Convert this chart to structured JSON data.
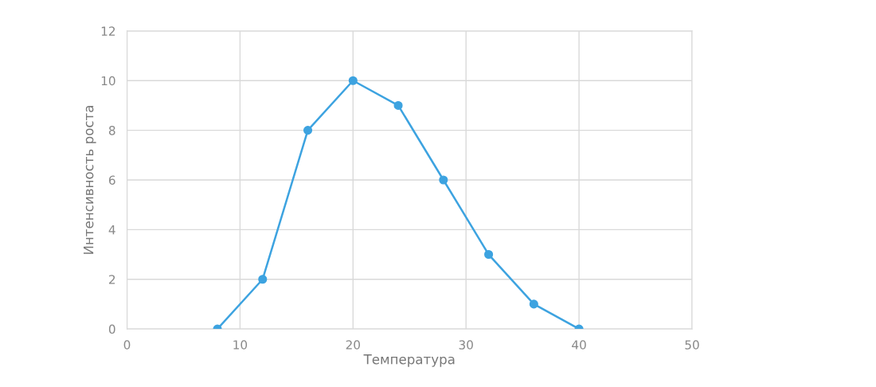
{
  "chart_data": {
    "type": "line",
    "xlabel": "Температура",
    "ylabel": "Интенсивность роста",
    "x": [
      8,
      12,
      16,
      20,
      24,
      28,
      32,
      36,
      40
    ],
    "series": [
      {
        "color": "#3da3e0",
        "values": [
          0,
          2,
          8,
          10,
          9,
          6,
          3,
          1,
          0
        ]
      }
    ],
    "xlim": [
      0,
      50
    ],
    "xticks": [
      0,
      10,
      20,
      30,
      40,
      50
    ],
    "ylim": [
      0,
      12
    ],
    "yticks": [
      0,
      2,
      4,
      6,
      8,
      10,
      12
    ],
    "grid": true,
    "marker": "circle",
    "line_style": "solid"
  }
}
